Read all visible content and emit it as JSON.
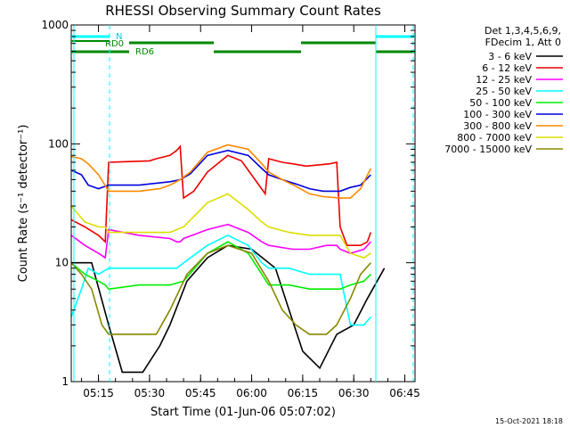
{
  "chart_data": {
    "type": "line",
    "title": "RHESSI Observing Summary Count Rates",
    "ylabel": "Count Rate (s⁻¹ detector⁻¹)",
    "xlabel": "Start Time (01-Jun-06 05:07:02)",
    "yscale": "log",
    "ylim": [
      1,
      1000
    ],
    "xlim_minutes": [
      0,
      101
    ],
    "x_ticks": [
      {
        "minute": 8,
        "label": "05:15"
      },
      {
        "minute": 23,
        "label": "05:30"
      },
      {
        "minute": 38,
        "label": "05:45"
      },
      {
        "minute": 53,
        "label": "06:00"
      },
      {
        "minute": 68,
        "label": "06:15"
      },
      {
        "minute": 83,
        "label": "06:30"
      },
      {
        "minute": 98,
        "label": "06:45"
      }
    ],
    "y_ticks": [
      {
        "value": 1,
        "label": "1"
      },
      {
        "value": 10,
        "label": "10"
      },
      {
        "value": 100,
        "label": "100"
      },
      {
        "value": 1000,
        "label": "1000"
      }
    ],
    "legend_header": [
      "Det 1,3,4,5,6,9,",
      "FDecim 1, Att 0"
    ],
    "series": [
      {
        "name": "3 - 6 keV",
        "color": "#000000",
        "points": [
          [
            0,
            10
          ],
          [
            6,
            10
          ],
          [
            11,
            3
          ],
          [
            15,
            1.2
          ],
          [
            21,
            1.2
          ],
          [
            26,
            2
          ],
          [
            29,
            3
          ],
          [
            34,
            7
          ],
          [
            40,
            11
          ],
          [
            46,
            14
          ],
          [
            53,
            13
          ],
          [
            60,
            9
          ],
          [
            64,
            4
          ],
          [
            68,
            1.8
          ],
          [
            73,
            1.3
          ],
          [
            78,
            2.5
          ],
          [
            83,
            3
          ],
          [
            87,
            5
          ],
          [
            92,
            9
          ]
        ]
      },
      {
        "name": "6 - 12 keV",
        "color": "#ee0000",
        "points": [
          [
            0,
            23
          ],
          [
            4,
            20
          ],
          [
            8,
            17
          ],
          [
            10,
            15
          ],
          [
            11,
            70
          ],
          [
            23,
            72
          ],
          [
            25,
            75
          ],
          [
            29,
            80
          ],
          [
            31,
            88
          ],
          [
            32,
            95
          ],
          [
            33,
            35
          ],
          [
            36,
            40
          ],
          [
            40,
            58
          ],
          [
            46,
            80
          ],
          [
            50,
            72
          ],
          [
            54,
            50
          ],
          [
            57,
            38
          ],
          [
            58,
            75
          ],
          [
            62,
            70
          ],
          [
            65,
            68
          ],
          [
            69,
            65
          ],
          [
            76,
            68
          ],
          [
            78,
            70
          ],
          [
            79,
            20
          ],
          [
            81,
            14
          ],
          [
            85,
            14
          ],
          [
            87,
            15
          ],
          [
            88,
            18
          ]
        ]
      },
      {
        "name": "12 - 25 keV",
        "color": "#ff00ff",
        "points": [
          [
            0,
            17
          ],
          [
            4,
            14
          ],
          [
            8,
            12
          ],
          [
            10,
            11
          ],
          [
            11,
            19
          ],
          [
            20,
            17
          ],
          [
            29,
            16
          ],
          [
            31,
            15
          ],
          [
            32,
            15
          ],
          [
            33,
            16
          ],
          [
            40,
            19
          ],
          [
            46,
            21
          ],
          [
            52,
            18
          ],
          [
            56,
            15
          ],
          [
            58,
            14
          ],
          [
            65,
            13
          ],
          [
            70,
            13
          ],
          [
            75,
            14
          ],
          [
            78,
            14
          ],
          [
            79,
            13
          ],
          [
            82,
            12
          ],
          [
            86,
            13
          ],
          [
            88,
            15
          ]
        ]
      },
      {
        "name": "25 - 50 keV",
        "color": "#00ffff",
        "points": [
          [
            0,
            3.5
          ],
          [
            3,
            6
          ],
          [
            5,
            9
          ],
          [
            8,
            8
          ],
          [
            11,
            9
          ],
          [
            20,
            9
          ],
          [
            29,
            9
          ],
          [
            31,
            9
          ],
          [
            33,
            10
          ],
          [
            40,
            14
          ],
          [
            46,
            17
          ],
          [
            52,
            14
          ],
          [
            56,
            10
          ],
          [
            58,
            9
          ],
          [
            64,
            9
          ],
          [
            70,
            8
          ],
          [
            75,
            8
          ],
          [
            79,
            8
          ],
          [
            82,
            3
          ],
          [
            86,
            3
          ],
          [
            88,
            3.5
          ]
        ]
      },
      {
        "name": "50 - 100 keV",
        "color": "#00ee00",
        "points": [
          [
            0,
            10
          ],
          [
            4,
            8
          ],
          [
            8,
            7
          ],
          [
            10,
            6.5
          ],
          [
            11,
            6
          ],
          [
            20,
            6.5
          ],
          [
            29,
            6.5
          ],
          [
            33,
            7
          ],
          [
            40,
            12
          ],
          [
            46,
            15
          ],
          [
            52,
            12
          ],
          [
            56,
            8
          ],
          [
            58,
            6.5
          ],
          [
            64,
            6.5
          ],
          [
            70,
            6
          ],
          [
            75,
            6
          ],
          [
            79,
            6
          ],
          [
            82,
            6.5
          ],
          [
            86,
            7
          ],
          [
            88,
            8
          ]
        ]
      },
      {
        "name": "100 - 300 keV",
        "color": "#0000dd",
        "points": [
          [
            0,
            60
          ],
          [
            3,
            55
          ],
          [
            5,
            45
          ],
          [
            8,
            42
          ],
          [
            11,
            45
          ],
          [
            20,
            45
          ],
          [
            26,
            47
          ],
          [
            29,
            48
          ],
          [
            32,
            50
          ],
          [
            35,
            56
          ],
          [
            40,
            80
          ],
          [
            46,
            88
          ],
          [
            52,
            80
          ],
          [
            56,
            62
          ],
          [
            58,
            55
          ],
          [
            62,
            50
          ],
          [
            66,
            46
          ],
          [
            70,
            42
          ],
          [
            74,
            40
          ],
          [
            79,
            40
          ],
          [
            82,
            43
          ],
          [
            85,
            45
          ],
          [
            88,
            55
          ]
        ]
      },
      {
        "name": "300 - 800 keV",
        "color": "#ff8800",
        "points": [
          [
            0,
            78
          ],
          [
            3,
            75
          ],
          [
            5,
            68
          ],
          [
            8,
            55
          ],
          [
            11,
            40
          ],
          [
            20,
            40
          ],
          [
            26,
            42
          ],
          [
            29,
            45
          ],
          [
            32,
            50
          ],
          [
            35,
            58
          ],
          [
            40,
            85
          ],
          [
            46,
            98
          ],
          [
            52,
            90
          ],
          [
            56,
            68
          ],
          [
            58,
            58
          ],
          [
            62,
            50
          ],
          [
            66,
            44
          ],
          [
            70,
            38
          ],
          [
            74,
            36
          ],
          [
            79,
            35
          ],
          [
            82,
            35
          ],
          [
            85,
            42
          ],
          [
            88,
            62
          ]
        ]
      },
      {
        "name": "800 - 7000 keV",
        "color": "#dddd00",
        "points": [
          [
            0,
            30
          ],
          [
            4,
            22
          ],
          [
            8,
            20
          ],
          [
            10,
            20
          ],
          [
            11,
            18
          ],
          [
            20,
            18
          ],
          [
            29,
            18
          ],
          [
            31,
            19
          ],
          [
            33,
            20
          ],
          [
            40,
            32
          ],
          [
            46,
            38
          ],
          [
            52,
            28
          ],
          [
            56,
            22
          ],
          [
            58,
            20
          ],
          [
            64,
            18
          ],
          [
            70,
            17
          ],
          [
            75,
            17
          ],
          [
            79,
            17
          ],
          [
            82,
            12
          ],
          [
            86,
            11
          ],
          [
            88,
            12
          ]
        ]
      },
      {
        "name": "7000 - 15000 keV",
        "color": "#888800",
        "points": [
          [
            0,
            10
          ],
          [
            3,
            8
          ],
          [
            6,
            6
          ],
          [
            9,
            3
          ],
          [
            11,
            2.5
          ],
          [
            15,
            2.5
          ],
          [
            22,
            2.5
          ],
          [
            25,
            2.5
          ],
          [
            29,
            4
          ],
          [
            34,
            8
          ],
          [
            40,
            12
          ],
          [
            46,
            14
          ],
          [
            53,
            12
          ],
          [
            58,
            7
          ],
          [
            62,
            4
          ],
          [
            66,
            3
          ],
          [
            70,
            2.5
          ],
          [
            75,
            2.5
          ],
          [
            78,
            3
          ],
          [
            82,
            5
          ],
          [
            85,
            8
          ],
          [
            88,
            10
          ]
        ]
      }
    ],
    "flag_labels": {
      "n": "N",
      "rd0": "RD0",
      "rd6": "RD6"
    }
  },
  "footer": {
    "timestamp": "15-Oct-2021 18:18"
  }
}
